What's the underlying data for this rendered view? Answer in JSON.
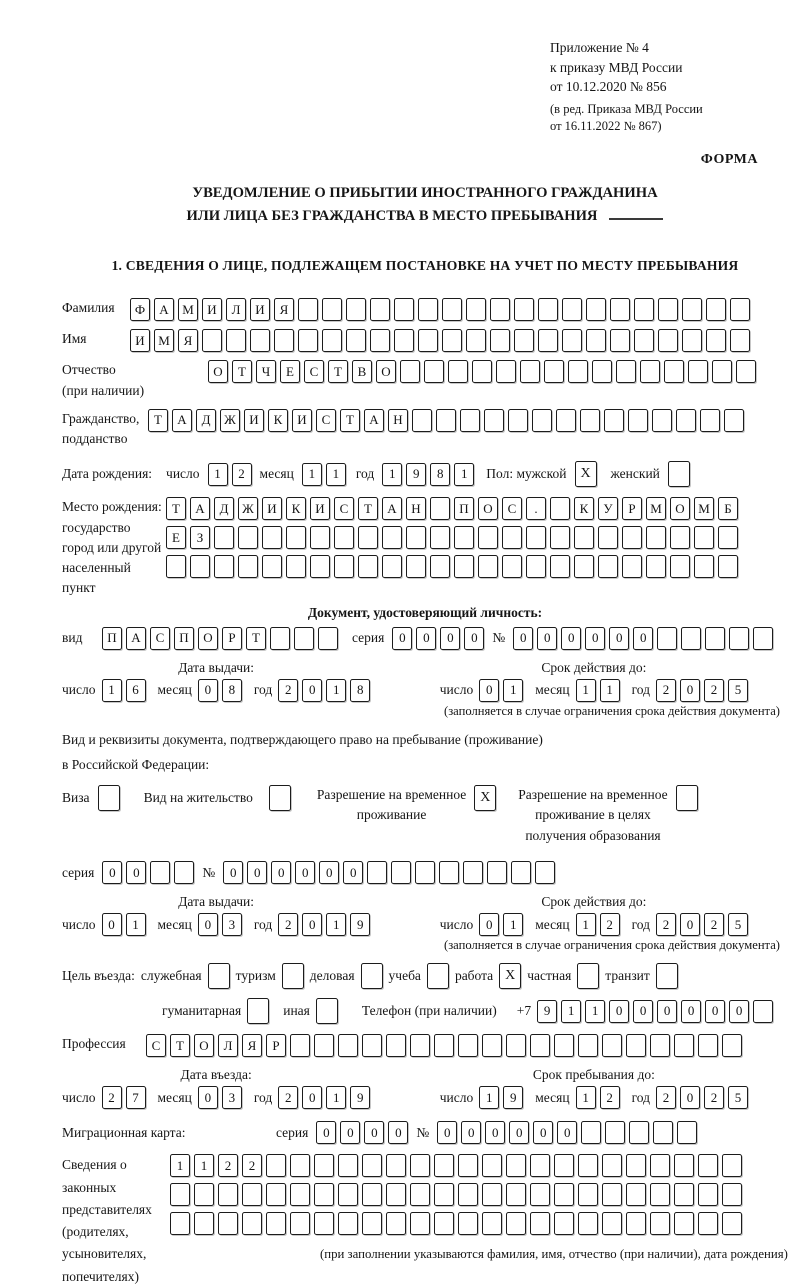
{
  "header": {
    "lines": [
      "Приложение № 4",
      "к приказу МВД России",
      "от 10.12.2020 № 856"
    ],
    "amendment_lines": [
      "(в ред. Приказа МВД России",
      "от 16.11.2022 № 867)"
    ],
    "form_label": "ФОРМА"
  },
  "title": {
    "line1": "УВЕДОМЛЕНИЕ О ПРИБЫТИИ ИНОСТРАННОГО ГРАЖДАНИНА",
    "line2": "ИЛИ ЛИЦА БЕЗ ГРАЖДАНСТВА В МЕСТО ПРЕБЫВАНИЯ"
  },
  "section1_heading": "1. СВЕДЕНИЯ О ЛИЦЕ, ПОДЛЕЖАЩЕМ ПОСТАНОВКЕ НА УЧЕТ ПО МЕСТУ ПРЕБЫВАНИЯ",
  "labels": {
    "day": "число",
    "month": "месяц",
    "year": "год",
    "series": "серия",
    "number": "№"
  },
  "person": {
    "surname": {
      "label": "Фамилия",
      "boxes": {
        "value": "ФАМИЛИЯ",
        "count": 26
      }
    },
    "given_name": {
      "label": "Имя",
      "boxes": {
        "value": "ИМЯ",
        "count": 26
      }
    },
    "patronymic": {
      "label": "Отчество",
      "label2": "(при наличии)",
      "boxes": {
        "value": "ОТЧЕСТВО",
        "count": 23
      }
    },
    "citizenship": {
      "label": "Гражданство,",
      "label2": "подданство",
      "boxes": {
        "value": "ТАДЖИКИСТАН",
        "count": 25
      }
    },
    "birth_date": {
      "label": "Дата рождения:",
      "day": {
        "value": "12",
        "count": 2
      },
      "month": {
        "value": "11",
        "count": 2
      },
      "year": {
        "value": "1981",
        "count": 4
      }
    },
    "sex": {
      "label": "Пол: мужской",
      "male_checked": "X",
      "female_label": "женский",
      "female_checked": ""
    },
    "birth_place": {
      "label_lines": [
        "Место рождения:",
        "государство",
        "город или другой",
        "населенный пункт"
      ],
      "rows": [
        {
          "value": "ТАДЖИКИСТАН ПОС. КУРМОМБ",
          "count": 24
        },
        {
          "value": "ЕЗ",
          "count": 24
        },
        {
          "value": "",
          "count": 24
        }
      ]
    }
  },
  "identity_doc": {
    "heading": "Документ, удостоверяющий личность:",
    "kind_label": "вид",
    "kind_boxes": {
      "value": "ПАСПОРТ",
      "count": 10
    },
    "series_boxes": {
      "value": "0000",
      "count": 4
    },
    "number_boxes": {
      "value": "000000",
      "count": 11
    },
    "issue_heading": "Дата выдачи:",
    "issue": {
      "day": {
        "value": "16",
        "count": 2
      },
      "month": {
        "value": "08",
        "count": 2
      },
      "year": {
        "value": "2018",
        "count": 4
      }
    },
    "valid_heading": "Срок действия до:",
    "valid": {
      "day": {
        "value": "01",
        "count": 2
      },
      "month": {
        "value": "11",
        "count": 2
      },
      "year": {
        "value": "2025",
        "count": 4
      }
    },
    "note": "(заполняется в случае ограничения срока действия документа)"
  },
  "residence_doc": {
    "intro_line1": "Вид и реквизиты документа, подтверждающего право на пребывание (проживание)",
    "intro_line2": "в Российской Федерации:",
    "options": [
      {
        "lines": [
          "Виза"
        ],
        "checked": ""
      },
      {
        "lines": [
          "Вид на жительство"
        ],
        "checked": ""
      },
      {
        "lines": [
          "Разрешение на временное",
          "проживание"
        ],
        "checked": "X"
      },
      {
        "lines": [
          "Разрешение на временное",
          "проживание в целях",
          "получения образования"
        ],
        "checked": ""
      }
    ],
    "series_boxes": {
      "value": "00",
      "count": 4
    },
    "number_boxes": {
      "value": "000000",
      "count": 14
    },
    "issue_heading": "Дата выдачи:",
    "issue": {
      "day": {
        "value": "01",
        "count": 2
      },
      "month": {
        "value": "03",
        "count": 2
      },
      "year": {
        "value": "2019",
        "count": 4
      }
    },
    "valid_heading": "Срок действия до:",
    "valid": {
      "day": {
        "value": "01",
        "count": 2
      },
      "month": {
        "value": "12",
        "count": 2
      },
      "year": {
        "value": "2025",
        "count": 4
      }
    },
    "note": "(заполняется в случае ограничения срока действия документа)"
  },
  "visit": {
    "purpose_label": "Цель въезда:",
    "purposes_row1": [
      {
        "label": "служебная",
        "checked": ""
      },
      {
        "label": "туризм",
        "checked": ""
      },
      {
        "label": "деловая",
        "checked": ""
      },
      {
        "label": "учеба",
        "checked": ""
      },
      {
        "label": "работа",
        "checked": "X"
      },
      {
        "label": "частная",
        "checked": ""
      },
      {
        "label": "транзит",
        "checked": ""
      }
    ],
    "purposes_row2": [
      {
        "label": "гуманитарная",
        "checked": ""
      },
      {
        "label": "иная",
        "checked": ""
      }
    ],
    "phone_label": "Телефон (при наличии)",
    "phone_prefix": "+7",
    "phone_boxes": {
      "value": "911000000",
      "count": 10
    },
    "profession_label": "Профессия",
    "profession_boxes": {
      "value": "СТОЛЯР",
      "count": 25
    }
  },
  "entry": {
    "entry_heading": "Дата въезда:",
    "entry_date": {
      "day": {
        "value": "27",
        "count": 2
      },
      "month": {
        "value": "03",
        "count": 2
      },
      "year": {
        "value": "2019",
        "count": 4
      }
    },
    "stay_heading": "Срок пребывания до:",
    "stay_date": {
      "day": {
        "value": "19",
        "count": 2
      },
      "month": {
        "value": "12",
        "count": 2
      },
      "year": {
        "value": "2025",
        "count": 4
      }
    }
  },
  "migration_card": {
    "label": "Миграционная карта:",
    "series_boxes": {
      "value": "0000",
      "count": 4
    },
    "number_boxes": {
      "value": "000000",
      "count": 11
    }
  },
  "representatives": {
    "label_lines": [
      "Сведения о",
      "законных",
      "представителях",
      "(родителях,",
      "усыновителях,",
      "попечителях)"
    ],
    "rows": [
      {
        "value": "1122",
        "count": 24
      },
      {
        "value": "",
        "count": 24
      },
      {
        "value": "",
        "count": 24
      }
    ],
    "note": "(при заполнении указываются фамилия, имя, отчество (при наличии), дата рождения)"
  }
}
